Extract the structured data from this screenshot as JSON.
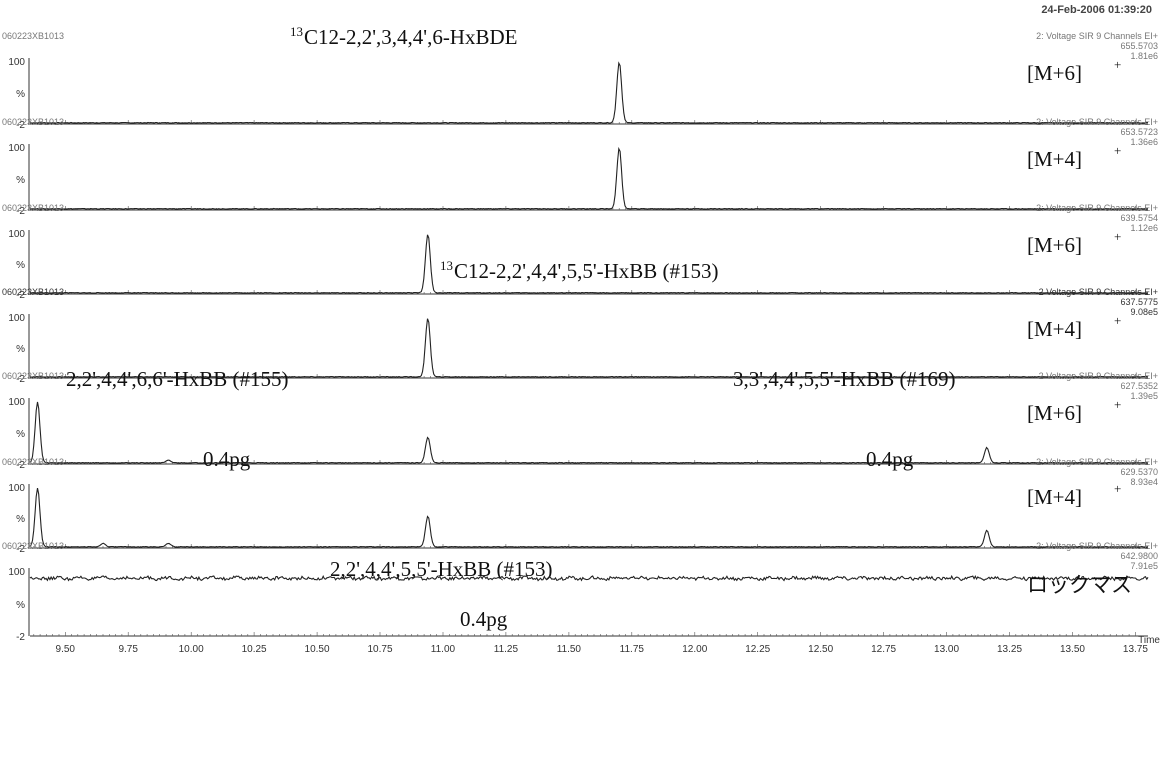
{
  "header": {
    "datetime": "24-Feb-2006 01:39:20"
  },
  "x_axis": {
    "title": "Time",
    "ticks": [
      "9.50",
      "9.75",
      "10.00",
      "10.25",
      "10.50",
      "10.75",
      "11.00",
      "11.25",
      "11.50",
      "11.75",
      "12.00",
      "12.25",
      "12.50",
      "12.75",
      "13.00",
      "13.25",
      "13.50",
      "13.75"
    ]
  },
  "chart_data": {
    "type": "line",
    "x_range": [
      9.36,
      13.8
    ],
    "y_range": [
      -2,
      100
    ],
    "y_ticks": [
      "100",
      "%",
      "-2"
    ],
    "panels": [
      {
        "sample_id": "060223XB1013",
        "function": "2: Voltage SIR 9 Channels EI+",
        "mass": "655.5703",
        "intensity": "1.81e6",
        "ion_label": "[M+6]",
        "ion_charge": "+",
        "annotations": [
          {
            "superscript": "13",
            "text": "C12-2,2',3,4,4',6-HxBDE"
          }
        ],
        "peaks": [
          {
            "rt": 11.7,
            "height": 100
          }
        ],
        "baseline": "flat",
        "baseline_level": 0
      },
      {
        "sample_id": "060223XB1013",
        "function": "2: Voltage SIR 9 Channels EI+",
        "mass": "653.5723",
        "intensity": "1.36e6",
        "ion_label": "[M+4]",
        "ion_charge": "+",
        "annotations": [],
        "peaks": [
          {
            "rt": 11.7,
            "height": 100
          }
        ],
        "baseline": "flat",
        "baseline_level": 0
      },
      {
        "sample_id": "060223XB1013",
        "function": "2: Voltage SIR 9 Channels EI+",
        "mass": "639.5754",
        "intensity": "1.12e6",
        "ion_label": "[M+6]",
        "ion_charge": "+",
        "annotations": [
          {
            "superscript": "13",
            "text": "C12-2,2',4,4',5,5'-HxBB (#153)"
          }
        ],
        "peaks": [
          {
            "rt": 10.94,
            "height": 100
          }
        ],
        "baseline": "flat",
        "baseline_level": 0
      },
      {
        "sample_id": "060223XB1013",
        "function": "2 Voltage SIR 9 Channels EI+",
        "mass": "637.5775",
        "intensity": "9.08e5",
        "ion_label": "[M+4]",
        "ion_charge": "+",
        "annotations": [],
        "peaks": [
          {
            "rt": 10.94,
            "height": 100
          }
        ],
        "baseline": "flat",
        "baseline_level": 0
      },
      {
        "sample_id": "060223XB1013",
        "function": "2 Voltage SIR 9 Channels EI+",
        "mass": "627.5352",
        "intensity": "1.39e5",
        "ion_label": "[M+6]",
        "ion_charge": "+",
        "annotations": [
          {
            "text": "2,2',4,4',6,6'-HxBB (#155)"
          },
          {
            "text": "0.4pg"
          },
          {
            "text": "3,3',4,4',5,5'-HxBB (#169)"
          },
          {
            "text": "0.4pg"
          }
        ],
        "peaks": [
          {
            "rt": 9.39,
            "height": 100
          },
          {
            "rt": 9.91,
            "height": 4
          },
          {
            "rt": 10.94,
            "height": 42
          },
          {
            "rt": 13.16,
            "height": 25
          }
        ],
        "baseline": "flat",
        "baseline_level": 0
      },
      {
        "sample_id": "060223XB1013",
        "function": "2: Voltage SIR 9 Channels EI+",
        "mass": "629.5370",
        "intensity": "8.93e4",
        "ion_label": "[M+4]",
        "ion_charge": "+",
        "annotations": [
          {
            "text": "2,2',4,4',5,5'-HxBB (#153)"
          },
          {
            "text": "0.4pg"
          }
        ],
        "peaks": [
          {
            "rt": 9.39,
            "height": 100
          },
          {
            "rt": 9.65,
            "height": 6
          },
          {
            "rt": 9.91,
            "height": 6
          },
          {
            "rt": 10.94,
            "height": 52
          },
          {
            "rt": 13.16,
            "height": 28
          }
        ],
        "baseline": "flat",
        "baseline_level": 0
      },
      {
        "sample_id": "060223XB1013",
        "function": "2: Voltage SIR 9 Channels EI+",
        "mass": "642.9800",
        "intensity": "7.91e5",
        "ion_label": "ロックマス",
        "ion_charge": "",
        "annotations": [],
        "peaks": [],
        "baseline": "noisy",
        "baseline_level": 90
      }
    ]
  }
}
